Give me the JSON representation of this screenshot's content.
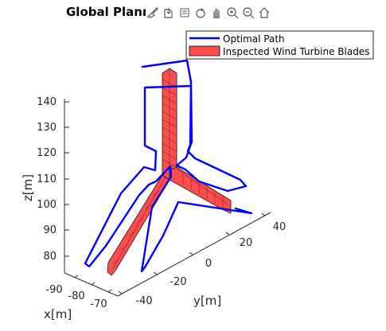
{
  "chart_data": {
    "type": "line",
    "title": "Global Planner",
    "xlabel": "x[m]",
    "ylabel": "y[m]",
    "zlabel": "z[m]",
    "z_ticks": [
      "140",
      "130",
      "120",
      "110",
      "100",
      "90",
      "80"
    ],
    "y_ticks": [
      "-40",
      "-20",
      "0",
      "20",
      "40"
    ],
    "x_ticks": [
      "-90",
      "-80",
      "-70"
    ],
    "legend_position": "top-right",
    "series": [
      {
        "name": "Optimal Path",
        "kind": "line",
        "color": "#0000ff"
      },
      {
        "name": "Inspected Wind Turbine Blades",
        "kind": "patch",
        "color": "#ff4d4d"
      }
    ]
  },
  "toolbar": {
    "icons": [
      "brush-icon",
      "export-icon",
      "datatip-icon",
      "rotate-icon",
      "pan-icon",
      "zoom-in-icon",
      "zoom-out-icon",
      "home-icon"
    ]
  }
}
